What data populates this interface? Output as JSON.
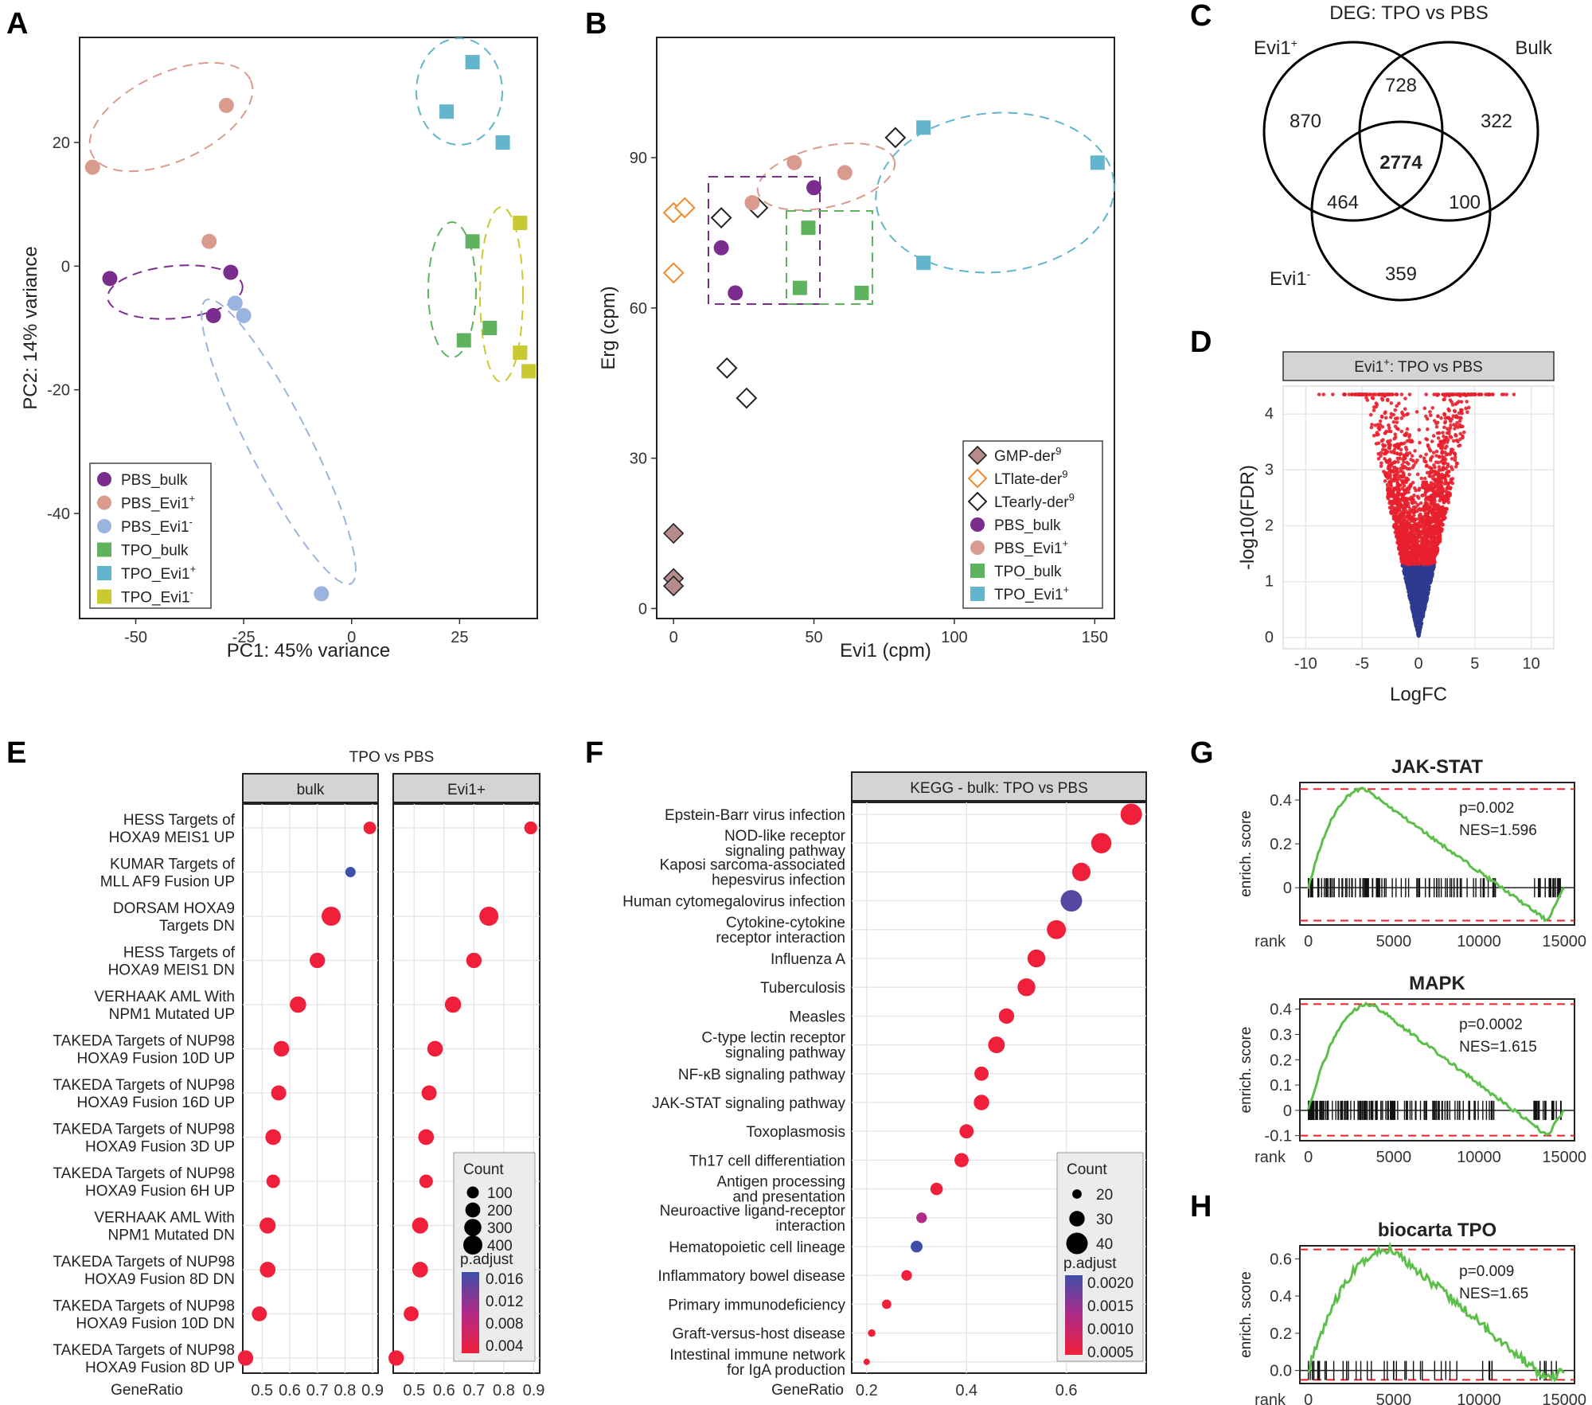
{
  "panel_letters": [
    "A",
    "B",
    "C",
    "D",
    "E",
    "F",
    "G",
    "H"
  ],
  "colors": {
    "PBS_bulk": "#7b2d8e",
    "PBS_Evi1p": "#d99b8e",
    "PBS_Evi1m": "#9bb3df",
    "TPO_bulk": "#5fb35f",
    "TPO_Evi1p": "#62b5cc",
    "TPO_Evi1m": "#c9c930",
    "red": "#e8202e",
    "navy": "#2e3b8f",
    "green": "#5cbf4a",
    "orange": "#f28a2c",
    "gmp": "#b58b8b"
  },
  "chart_data": [
    {
      "id": "A",
      "type": "scatter",
      "xlabel": "PC1: 45% variance",
      "ylabel": "PC2: 14% variance",
      "xlim": [
        -63,
        43
      ],
      "ylim": [
        -57,
        37
      ],
      "xticks": [
        "-50",
        "-25",
        "0",
        "25"
      ],
      "xtick_vals": [
        -50,
        -25,
        0,
        25
      ],
      "yticks": [
        "20",
        "0",
        "-20",
        "-40"
      ],
      "ytick_vals": [
        20,
        0,
        -20,
        -40
      ],
      "series": [
        {
          "name": "PBS_bulk",
          "shape": "circle",
          "color": "#7b2d8e",
          "points": [
            [
              -56,
              -2
            ],
            [
              -28,
              -1
            ],
            [
              -32,
              -8
            ]
          ]
        },
        {
          "name": "PBS_Evi1+",
          "shape": "circle",
          "color": "#d99b8e",
          "points": [
            [
              -60,
              16
            ],
            [
              -29,
              26
            ],
            [
              -33,
              4
            ]
          ]
        },
        {
          "name": "PBS_Evi1-",
          "shape": "circle",
          "color": "#9bb3df",
          "points": [
            [
              -27,
              -6
            ],
            [
              -25,
              -8
            ],
            [
              -7,
              -53
            ]
          ]
        },
        {
          "name": "TPO_bulk",
          "shape": "square",
          "color": "#5fb35f",
          "points": [
            [
              28,
              4
            ],
            [
              26,
              -12
            ],
            [
              32,
              -10
            ]
          ]
        },
        {
          "name": "TPO_Evi1+",
          "shape": "square",
          "color": "#62b5cc",
          "points": [
            [
              28,
              33
            ],
            [
              22,
              25
            ],
            [
              35,
              20
            ]
          ]
        },
        {
          "name": "TPO_Evi1-",
          "shape": "square",
          "color": "#c9c930",
          "points": [
            [
              39,
              7
            ],
            [
              39,
              -14
            ],
            [
              41,
              -17
            ]
          ]
        }
      ],
      "legend": [
        "PBS_bulk",
        "PBS_Evi1+",
        "PBS_Evi1-",
        "TPO_bulk",
        "TPO_Evi1+",
        "TPO_Evi1-"
      ]
    },
    {
      "id": "B",
      "type": "scatter",
      "xlabel": "Evi1 (cpm)",
      "ylabel": "Erg (cpm)",
      "xlim": [
        -6,
        157
      ],
      "ylim": [
        -2,
        114
      ],
      "xticks": [
        "0",
        "50",
        "100",
        "150"
      ],
      "xtick_vals": [
        0,
        50,
        100,
        150
      ],
      "yticks": [
        "90",
        "60",
        "30",
        "0"
      ],
      "ytick_vals": [
        90,
        60,
        30,
        0
      ],
      "series": [
        {
          "name": "GMP-der9",
          "shape": "diamond",
          "color": "#b58b8b",
          "points": [
            [
              0,
              15
            ],
            [
              0,
              6
            ],
            [
              0,
              4.5
            ]
          ]
        },
        {
          "name": "LTlate-der9",
          "shape": "diamond-open",
          "color": "#f28a2c",
          "points": [
            [
              0,
              79
            ],
            [
              4,
              80
            ],
            [
              0,
              67
            ]
          ]
        },
        {
          "name": "LTearly-der9",
          "shape": "diamond-open",
          "color": "#222222",
          "points": [
            [
              17,
              78
            ],
            [
              30,
              80
            ],
            [
              19,
              48
            ],
            [
              26,
              42
            ],
            [
              79,
              94
            ]
          ]
        },
        {
          "name": "PBS_bulk",
          "shape": "circle",
          "color": "#7b2d8e",
          "points": [
            [
              50,
              84
            ],
            [
              17,
              72
            ],
            [
              22,
              63
            ]
          ]
        },
        {
          "name": "PBS_Evi1+",
          "shape": "circle",
          "color": "#d99b8e",
          "points": [
            [
              28,
              81
            ],
            [
              43,
              89
            ],
            [
              61,
              87
            ]
          ]
        },
        {
          "name": "TPO_bulk",
          "shape": "square",
          "color": "#5fb35f",
          "points": [
            [
              48,
              76
            ],
            [
              45,
              64
            ],
            [
              67,
              63
            ]
          ]
        },
        {
          "name": "TPO_Evi1+",
          "shape": "square",
          "color": "#62b5cc",
          "points": [
            [
              89,
              96
            ],
            [
              89,
              69
            ],
            [
              151,
              89
            ]
          ]
        }
      ],
      "legend": [
        "GMP-der9",
        "LTlate-der9",
        "LTearly-der9",
        "PBS_bulk",
        "PBS_Evi1+",
        "TPO_bulk",
        "TPO_Evi1+"
      ]
    },
    {
      "id": "C",
      "type": "venn",
      "title": "DEG: TPO vs PBS",
      "sets": [
        "Evi1+",
        "Bulk",
        "Evi1-"
      ],
      "regions": {
        "evi1p_only": 870,
        "evi1p_bulk": 728,
        "bulk_only": 322,
        "all": 2774,
        "evi1p_evi1m": 464,
        "bulk_evi1m": 100,
        "evi1m_only": 359
      }
    },
    {
      "id": "D",
      "type": "scatter",
      "title": "Evi1+: TPO vs PBS",
      "xlabel": "LogFC",
      "ylabel": "-log10(FDR)",
      "xlim": [
        -12,
        12
      ],
      "ylim": [
        -0.2,
        4.5
      ],
      "xticks": [
        "-10",
        "-5",
        "0",
        "5",
        "10"
      ],
      "xtick_vals": [
        -10,
        -5,
        0,
        5,
        10
      ],
      "yticks": [
        "4",
        "3",
        "2",
        "1",
        "0"
      ],
      "ytick_vals": [
        4,
        3,
        2,
        1,
        0
      ],
      "threshold": 1.3,
      "colors": [
        "#e8202e",
        "#2e3b8f"
      ]
    },
    {
      "id": "E",
      "type": "dot",
      "title": "TPO vs PBS",
      "facets": [
        "bulk",
        "Evi1+"
      ],
      "xlabel": "GeneRatio",
      "xlim": [
        0.43,
        0.92
      ],
      "xticks": [
        "0.5",
        "0.6",
        "0.7",
        "0.8",
        "0.9"
      ],
      "xtick_vals": [
        0.5,
        0.6,
        0.7,
        0.8,
        0.9
      ],
      "terms": [
        "HESS Targets of\nHOXA9 MEIS1 UP",
        "KUMAR Targets of\nMLL AF9 Fusion UP",
        "DORSAM HOXA9\nTargets DN",
        "HESS Targets of\nHOXA9 MEIS1 DN",
        "VERHAAK AML With\nNPM1 Mutated UP",
        "TAKEDA Targets of NUP98\nHOXA9 Fusion 10D UP",
        "TAKEDA Targets of NUP98\nHOXA9 Fusion 16D UP",
        "TAKEDA Targets of NUP98\nHOXA9 Fusion 3D UP",
        "TAKEDA Targets of NUP98\nHOXA9 Fusion 6H UP",
        "VERHAAK AML With\nNPM1 Mutated DN",
        "TAKEDA Targets of NUP98\nHOXA9 Fusion 8D DN",
        "TAKEDA Targets of NUP98\nHOXA9 Fusion 10D DN",
        "TAKEDA Targets of NUP98\nHOXA9 Fusion 8D UP"
      ],
      "bulk": {
        "ratio": [
          0.89,
          0.82,
          0.75,
          0.7,
          0.63,
          0.57,
          0.56,
          0.54,
          0.54,
          0.52,
          0.52,
          0.49,
          0.44
        ],
        "count": [
          120,
          60,
          400,
          220,
          260,
          230,
          210,
          230,
          150,
          250,
          230,
          200,
          220
        ],
        "padj": [
          0.001,
          0.016,
          0.001,
          0.001,
          0.001,
          0.001,
          0.001,
          0.001,
          0.001,
          0.001,
          0.001,
          0.001,
          0.001
        ]
      },
      "evi1": {
        "ratio": [
          0.89,
          0.75,
          0.7,
          0.63,
          0.57,
          0.55,
          0.54,
          0.54,
          0.52,
          0.52,
          0.49,
          0.44
        ],
        "count": [
          130,
          400,
          220,
          260,
          230,
          210,
          230,
          150,
          250,
          230,
          200,
          220
        ],
        "padj": [
          0.001,
          0.001,
          0.001,
          0.001,
          0.001,
          0.001,
          0.001,
          0.001,
          0.001,
          0.001,
          0.001,
          0.001
        ],
        "terms_idx": [
          0,
          2,
          3,
          4,
          5,
          6,
          7,
          8,
          9,
          10,
          11,
          12
        ]
      },
      "legend_count": {
        "title": "Count",
        "labels": [
          "100",
          "200",
          "300",
          "400"
        ],
        "values": [
          100,
          200,
          300,
          400
        ]
      },
      "legend_padj": {
        "title": "p.adjust",
        "labels": [
          "0.016",
          "0.012",
          "0.008",
          "0.004"
        ]
      }
    },
    {
      "id": "F",
      "type": "dot",
      "title": "KEGG - bulk: TPO vs PBS",
      "xlabel": "GeneRatio",
      "xlim": [
        0.17,
        0.76
      ],
      "xticks": [
        "0.2",
        "0.4",
        "0.6"
      ],
      "xtick_vals": [
        0.2,
        0.4,
        0.6
      ],
      "terms": [
        "Epstein-Barr virus infection",
        "NOD-like receptor\nsignaling pathway",
        "Kaposi sarcoma-associated\nhepesvirus infection",
        "Human cytomegalovirus infection",
        "Cytokine-cytokine\nreceptor interaction",
        "Influenza A",
        "Tuberculosis",
        "Measles",
        "C-type lectin receptor\nsignaling pathway",
        "NF-κB signaling pathway",
        "JAK-STAT signaling pathway",
        "Toxoplasmosis",
        "Th17 cell differentiation",
        "Antigen processing\nand presentation",
        "Neuroactive ligand-receptor\ninteraction",
        "Hematopoietic cell lineage",
        "Inflammatory bowel disease",
        "Primary immunodeficiency",
        "Graft-versus-host disease",
        "Intestinal immune network\nfor IgA production"
      ],
      "highlight": [
        9,
        10,
        15
      ],
      "ratio": [
        0.73,
        0.67,
        0.63,
        0.61,
        0.58,
        0.54,
        0.52,
        0.48,
        0.46,
        0.43,
        0.43,
        0.4,
        0.39,
        0.34,
        0.31,
        0.3,
        0.28,
        0.24,
        0.21,
        0.2
      ],
      "count": [
        40,
        38,
        35,
        40,
        36,
        34,
        34,
        30,
        32,
        28,
        30,
        28,
        28,
        25,
        22,
        24,
        22,
        20,
        17,
        15
      ],
      "padj": [
        0.0002,
        0.0002,
        0.0002,
        0.002,
        0.0002,
        0.0002,
        0.0002,
        0.0002,
        0.0002,
        0.0002,
        0.0002,
        0.0002,
        0.0002,
        0.0002,
        0.0012,
        0.0022,
        0.0002,
        0.0002,
        0.0002,
        0.0002
      ],
      "legend_count": {
        "title": "Count",
        "labels": [
          "20",
          "30",
          "40"
        ],
        "values": [
          20,
          30,
          40
        ]
      },
      "legend_padj": {
        "title": "p.adjust",
        "labels": [
          "0.0020",
          "0.0015",
          "0.0010",
          "0.0005"
        ]
      }
    },
    {
      "id": "G1",
      "type": "line",
      "title": "JAK-STAT",
      "p": "p=0.002",
      "nes": "NES=1.596",
      "ylabel": "enrich. score",
      "xlabel": "rank",
      "ylim": [
        -0.17,
        0.48
      ],
      "yticks": [
        "0.4",
        "0.2",
        "0"
      ],
      "ytick_vals": [
        0.4,
        0.2,
        0
      ],
      "xticks": [
        "0",
        "5000",
        "10000",
        "15000"
      ],
      "xtick_vals": [
        0,
        5000,
        10000,
        15000
      ],
      "max_es": 0.45,
      "min_es": -0.15
    },
    {
      "id": "G2",
      "type": "line",
      "title": "MAPK",
      "p": "p=0.0002",
      "nes": "NES=1.615",
      "ylabel": "enrich. score",
      "xlabel": "rank",
      "ylim": [
        -0.12,
        0.44
      ],
      "yticks": [
        "0.4",
        "0.3",
        "0.2",
        "0.1",
        "0",
        "-0.1"
      ],
      "ytick_vals": [
        0.4,
        0.3,
        0.2,
        0.1,
        0,
        -0.1
      ],
      "xticks": [
        "0",
        "5000",
        "10000",
        "15000"
      ],
      "xtick_vals": [
        0,
        5000,
        10000,
        15000
      ],
      "max_es": 0.42,
      "min_es": -0.1
    },
    {
      "id": "H",
      "type": "line",
      "title": "biocarta TPO",
      "p": "p=0.009",
      "nes": "NES=1.65",
      "ylabel": "enrich. score",
      "xlabel": "rank",
      "ylim": [
        -0.07,
        0.67
      ],
      "yticks": [
        "0.6",
        "0.4",
        "0.2",
        "0.0"
      ],
      "ytick_vals": [
        0.6,
        0.4,
        0.2,
        0
      ],
      "xticks": [
        "0",
        "5000",
        "10000",
        "15000"
      ],
      "xtick_vals": [
        0,
        5000,
        10000,
        15000
      ],
      "max_es": 0.65,
      "min_es": -0.05
    }
  ]
}
